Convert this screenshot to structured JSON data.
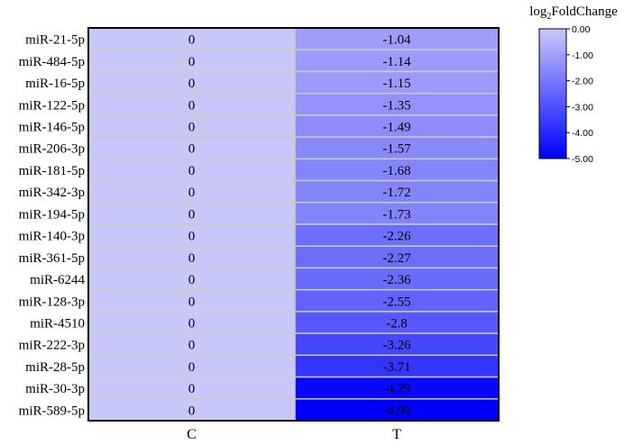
{
  "chart_data": {
    "type": "heatmap",
    "rows": [
      "miR-21-5p",
      "miR-484-5p",
      "miR-16-5p",
      "miR-122-5p",
      "miR-146-5p",
      "miR-206-3p",
      "miR-181-5p",
      "miR-342-3p",
      "miR-194-5p",
      "miR-140-3p",
      "miR-361-5p",
      "miR-6244",
      "miR-128-3p",
      "miR-4510",
      "miR-222-3p",
      "miR-28-5p",
      "miR-30-3p",
      "miR-589-5p"
    ],
    "columns": [
      "C",
      "T"
    ],
    "values": [
      [
        0,
        -1.04
      ],
      [
        0,
        -1.14
      ],
      [
        0,
        -1.15
      ],
      [
        0,
        -1.35
      ],
      [
        0,
        -1.49
      ],
      [
        0,
        -1.57
      ],
      [
        0,
        -1.68
      ],
      [
        0,
        -1.72
      ],
      [
        0,
        -1.73
      ],
      [
        0,
        -2.26
      ],
      [
        0,
        -2.27
      ],
      [
        0,
        -2.36
      ],
      [
        0,
        -2.55
      ],
      [
        0,
        -2.8
      ],
      [
        0,
        -3.26
      ],
      [
        0,
        -3.71
      ],
      [
        0,
        -4.79
      ],
      [
        0,
        -4.99
      ]
    ],
    "value_labels": [
      [
        "0",
        "-1.04"
      ],
      [
        "0",
        "-1.14"
      ],
      [
        "0",
        "-1.15"
      ],
      [
        "0",
        "-1.35"
      ],
      [
        "0",
        "-1.49"
      ],
      [
        "0",
        "-1.57"
      ],
      [
        "0",
        "-1.68"
      ],
      [
        "0",
        "-1.72"
      ],
      [
        "0",
        "-1.73"
      ],
      [
        "0",
        "-2.26"
      ],
      [
        "0",
        "-2.27"
      ],
      [
        "0",
        "-2.36"
      ],
      [
        "0",
        "-2.55"
      ],
      [
        "0",
        "-2.8"
      ],
      [
        "0",
        "-3.26"
      ],
      [
        "0",
        "-3.71"
      ],
      [
        "0",
        "-4.79"
      ],
      [
        "0",
        "-4.99"
      ]
    ],
    "colorbar": {
      "title_prefix": "log",
      "title_subscript": "2",
      "title_suffix": "FoldChange",
      "range": [
        -5.0,
        0.0
      ],
      "ticks": [
        0,
        -1,
        -2,
        -3,
        -4,
        -5
      ],
      "tick_labels": [
        "0.00",
        "-1.00",
        "-2.00",
        "-3.00",
        "-4.00",
        "-5.00"
      ],
      "color_high": "#c8c8f8",
      "color_low": "#0000ff",
      "legend_position": "top-right"
    }
  }
}
